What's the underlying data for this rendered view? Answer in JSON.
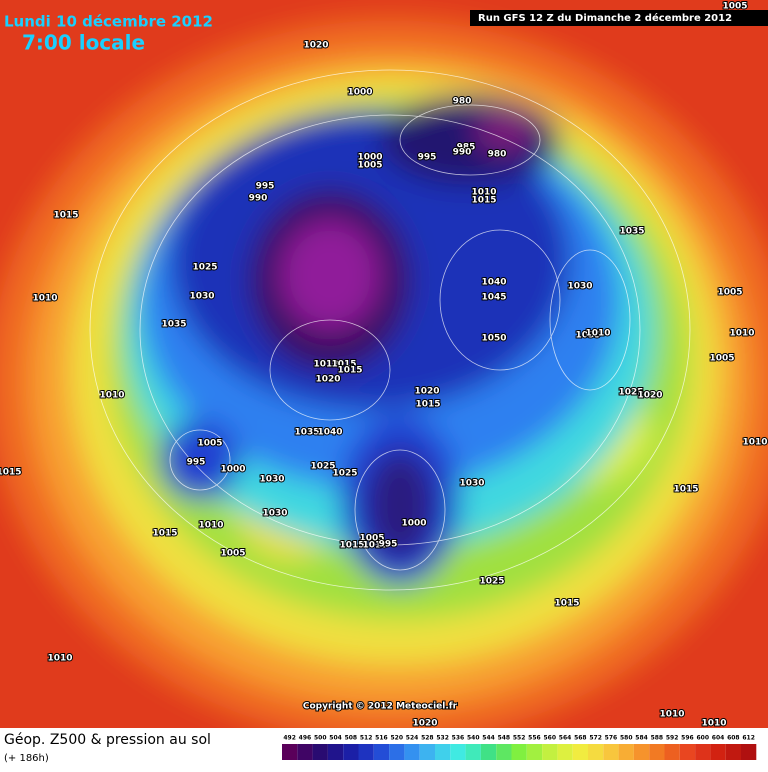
{
  "header": {
    "date": "Lundi 10 décembre 2012",
    "time": "7:00 locale",
    "run": "Run GFS 12 Z du Dimanche 2 décembre 2012"
  },
  "map": {
    "pressure_labels": [
      1020,
      1000,
      980,
      985,
      990,
      980,
      1000,
      995,
      1005,
      1010,
      1015,
      995,
      990,
      1015,
      1035,
      1025,
      1040,
      1045,
      1030,
      1030,
      1010,
      1005,
      1035,
      1050,
      1035,
      1010,
      1010,
      1005,
      1010,
      1015,
      1015,
      1020,
      1010,
      1020,
      1015,
      1025,
      1020,
      1035,
      1040,
      1010,
      1005,
      995,
      1000,
      1025,
      1025,
      1015,
      1030,
      1030,
      1015,
      1030,
      1010,
      1000,
      1015,
      1005,
      1015,
      1010,
      995,
      1005,
      1025,
      1015,
      1010,
      1010,
      1010,
      1020,
      1005
    ],
    "copyright": "Copyright © 2012 Meteociel.fr"
  },
  "footer": {
    "title": "Géop. Z500 & pression au sol",
    "subtitle": "(+ 186h)"
  },
  "legend": {
    "ticks": [
      492,
      496,
      500,
      504,
      508,
      512,
      516,
      520,
      524,
      528,
      532,
      536,
      540,
      544,
      548,
      552,
      556,
      560,
      564,
      568,
      572,
      576,
      580,
      584,
      588,
      592,
      596,
      600,
      604,
      608,
      612
    ]
  }
}
